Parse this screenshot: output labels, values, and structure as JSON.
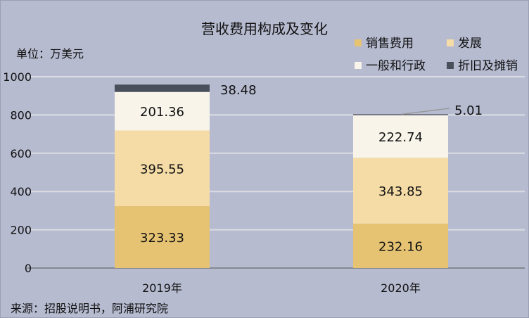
{
  "chart_data": {
    "type": "bar",
    "stacked": true,
    "title": "营收费用构成及变化",
    "unit_label": "单位：万美元",
    "categories": [
      "2019年",
      "2020年"
    ],
    "ylim": [
      0,
      1000
    ],
    "yticks": [
      "0",
      "200",
      "400",
      "600",
      "800",
      "1000"
    ],
    "grid": true,
    "legend_position": "top-right",
    "series": [
      {
        "name": "销售费用",
        "values": [
          323.33,
          232.16
        ],
        "labels": [
          "323.33",
          "232.16"
        ],
        "color": "#e6c373"
      },
      {
        "name": "发展",
        "values": [
          395.55,
          343.85
        ],
        "labels": [
          "395.55",
          "343.85"
        ],
        "color": "#f5dca6"
      },
      {
        "name": "一般和行政",
        "values": [
          201.36,
          222.74
        ],
        "labels": [
          "201.36",
          "222.74"
        ],
        "color": "#f8f4ea"
      },
      {
        "name": "折旧及摊销",
        "values": [
          38.48,
          5.01
        ],
        "labels": [
          "38.48",
          "5.01"
        ],
        "color": "#4a4f5c"
      }
    ],
    "source": "来源：招股说明书，阿浦研究院"
  }
}
